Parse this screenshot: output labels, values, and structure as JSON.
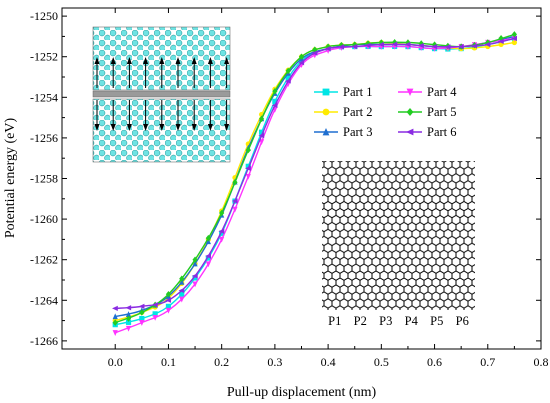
{
  "chart_data": {
    "type": "line",
    "xlabel": "Pull-up displacement (nm)",
    "ylabel": "Potential energy (eV)",
    "xlim": [
      -0.1,
      0.8
    ],
    "ylim": [
      -1266.4,
      -1249.6
    ],
    "xticks": [
      "0.0",
      "0.1",
      "0.2",
      "0.3",
      "0.4",
      "0.5",
      "0.6",
      "0.7",
      "0.8"
    ],
    "yticks": [
      "-1266",
      "-1264",
      "-1262",
      "-1260",
      "-1258",
      "-1256",
      "-1254",
      "-1252",
      "-1250"
    ],
    "legend_placement": "right-middle",
    "grid": false,
    "x": [
      0.0,
      0.05,
      0.1,
      0.15,
      0.2,
      0.25,
      0.3,
      0.35,
      0.4,
      0.45,
      0.5,
      0.55,
      0.6,
      0.65,
      0.7,
      0.75
    ],
    "series": [
      {
        "name": "Part 1",
        "color": "#00e5e5",
        "marker": "square",
        "values": [
          -1265.2,
          -1264.9,
          -1264.3,
          -1262.9,
          -1260.7,
          -1257.4,
          -1254.2,
          -1252.2,
          -1251.6,
          -1251.5,
          -1251.5,
          -1251.5,
          -1251.6,
          -1251.6,
          -1251.4,
          -1251.1
        ]
      },
      {
        "name": "Part 2",
        "color": "#ffeb00",
        "marker": "circle",
        "values": [
          -1265.0,
          -1264.6,
          -1263.9,
          -1262.2,
          -1259.6,
          -1256.3,
          -1253.6,
          -1252.0,
          -1251.5,
          -1251.4,
          -1251.3,
          -1251.4,
          -1251.5,
          -1251.6,
          -1251.5,
          -1251.3
        ]
      },
      {
        "name": "Part 3",
        "color": "#1f6fd0",
        "marker": "triangle-up",
        "values": [
          -1264.8,
          -1264.5,
          -1263.8,
          -1262.2,
          -1259.8,
          -1256.5,
          -1253.8,
          -1252.1,
          -1251.6,
          -1251.4,
          -1251.4,
          -1251.4,
          -1251.5,
          -1251.5,
          -1251.3,
          -1251.0
        ]
      },
      {
        "name": "Part 4",
        "color": "#ff33ff",
        "marker": "triangle-down",
        "values": [
          -1265.6,
          -1265.1,
          -1264.5,
          -1263.2,
          -1261.0,
          -1257.9,
          -1254.6,
          -1252.4,
          -1251.7,
          -1251.5,
          -1251.5,
          -1251.5,
          -1251.6,
          -1251.5,
          -1251.3,
          -1251.1
        ]
      },
      {
        "name": "Part 5",
        "color": "#22cc22",
        "marker": "diamond",
        "values": [
          -1265.1,
          -1264.6,
          -1263.7,
          -1262.0,
          -1259.7,
          -1256.6,
          -1253.7,
          -1252.0,
          -1251.5,
          -1251.4,
          -1251.3,
          -1251.3,
          -1251.4,
          -1251.5,
          -1251.3,
          -1250.9
        ]
      },
      {
        "name": "Part 6",
        "color": "#8a2be2",
        "marker": "triangle-left",
        "values": [
          -1264.4,
          -1264.3,
          -1264.0,
          -1262.8,
          -1260.6,
          -1257.5,
          -1254.4,
          -1252.3,
          -1251.6,
          -1251.5,
          -1251.4,
          -1251.4,
          -1251.5,
          -1251.5,
          -1251.4,
          -1251.1
        ]
      }
    ],
    "strip_labels": [
      "P1",
      "P2",
      "P3",
      "P4",
      "P5",
      "P6"
    ]
  }
}
